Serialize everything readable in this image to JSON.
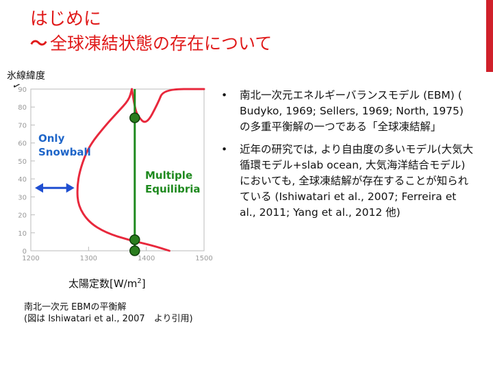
{
  "slide": {
    "title_line1": "はじめに",
    "title_tilde": "～",
    "title_line2": "全球凍結状態の存在について"
  },
  "figure": {
    "y_axis_label": "氷線緯度",
    "x_axis_label": "太陽定数[W/m",
    "x_axis_label_sup": "2",
    "x_axis_label_end": "]",
    "caption_line1": "南北一次元 EBMの平衡解",
    "caption_line2": "(図は Ishiwatari et al., 2007　より引用)"
  },
  "chart_data": {
    "type": "line",
    "x_ticks": [
      1200,
      1300,
      1400,
      1500
    ],
    "y_ticks": [
      0,
      10,
      20,
      30,
      40,
      50,
      60,
      70,
      80,
      90
    ],
    "xlim": [
      1200,
      1500
    ],
    "ylim": [
      0,
      90
    ],
    "series": [
      {
        "color": "#e8283c",
        "x": [
          1375,
          1380,
          1385,
          1400,
          1420,
          1430,
          1500
        ],
        "y": [
          90,
          80,
          75,
          70,
          82,
          90,
          90
        ]
      },
      {
        "color": "#e8283c",
        "x": [
          1375,
          1370,
          1350,
          1330,
          1300,
          1285,
          1280,
          1282,
          1300,
          1330,
          1370,
          1410,
          1440
        ],
        "y": [
          90,
          84,
          77,
          70,
          58,
          45,
          35,
          25,
          16,
          10,
          6,
          3,
          0
        ]
      }
    ],
    "vertical_line": {
      "x": 1380,
      "color": "#1f8a1f"
    },
    "equilibrium_points": [
      {
        "x": 1380,
        "y": 74
      },
      {
        "x": 1380,
        "y": 5
      },
      {
        "x": 1380,
        "y": 0
      }
    ],
    "annotations": {
      "only_snowball_line1": "Only",
      "only_snowball_line2": "Snowball",
      "multiple_line1": "Multiple",
      "multiple_line2": "Equilibria",
      "arrow_y": 35
    },
    "colors": {
      "snowball_text": "#1f66c9",
      "multiple_text": "#1f8a1f"
    }
  },
  "bullets": [
    "南北一次元エネルギーバランスモデル (EBM) ( Budyko, 1969; Sellers, 1969; North, 1975) の多重平衡解の一つである「全球凍結解」",
    "近年の研究では, より自由度の多いモデル(大気大循環モデル+slab ocean, 大気海洋結合モデル)においても, 全球凍結解が存在することが知られている (Ishiwatari et al., 2007; Ferreira et al., 2011; Yang et al., 2012 他)"
  ]
}
